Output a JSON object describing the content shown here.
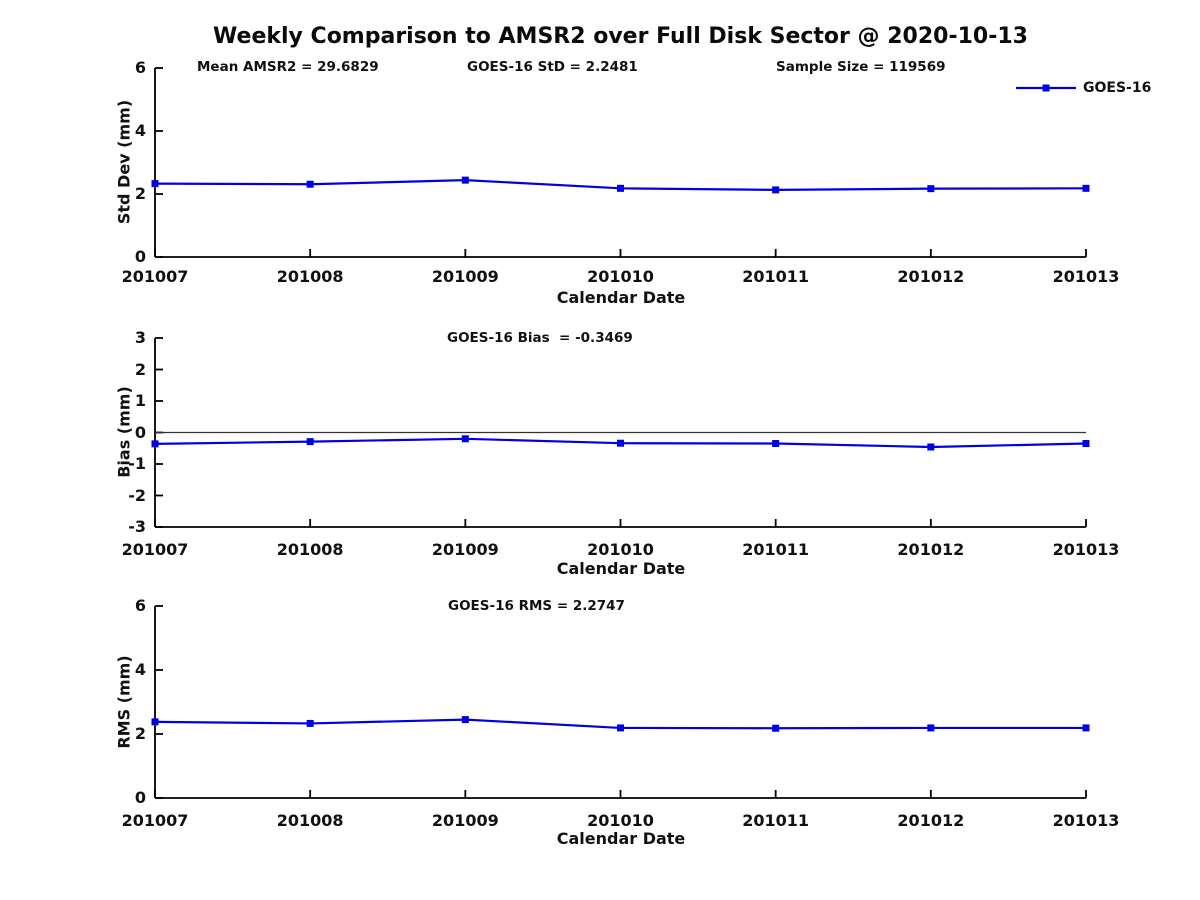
{
  "figure_title": "Weekly Comparison to AMSR2 over Full Disk Sector @ 2020-10-13",
  "colors": {
    "line": "#0000E6",
    "axis": "#000000",
    "zero_line": "#333333",
    "text": "#111111",
    "background": "#ffffff"
  },
  "chart_data": [
    {
      "type": "line",
      "categories": [
        "201007",
        "201008",
        "201009",
        "201010",
        "201011",
        "201012",
        "201013"
      ],
      "series": [
        {
          "name": "GOES-16",
          "values": [
            2.33,
            2.31,
            2.44,
            2.18,
            2.13,
            2.17,
            2.18
          ]
        }
      ],
      "xlabel": "Calendar Date",
      "ylabel": "Std Dev (mm)",
      "ylim": [
        0,
        6
      ],
      "yticks": [
        0,
        2,
        4,
        6
      ],
      "grid": false,
      "marker": "square",
      "annotations": [
        "Mean AMSR2 = 29.6829",
        "GOES-16 StD = 2.2481",
        "Sample Size = 119569"
      ],
      "legend": {
        "label": "GOES-16",
        "position": "top-right-outside"
      }
    },
    {
      "type": "line",
      "categories": [
        "201007",
        "201008",
        "201009",
        "201010",
        "201011",
        "201012",
        "201013"
      ],
      "series": [
        {
          "name": "GOES-16",
          "values": [
            -0.36,
            -0.29,
            -0.2,
            -0.34,
            -0.35,
            -0.46,
            -0.35
          ]
        }
      ],
      "xlabel": "Calendar Date",
      "ylabel": "Bias (mm)",
      "ylim": [
        -3,
        3
      ],
      "yticks": [
        -3,
        -2,
        -1,
        0,
        1,
        2,
        3
      ],
      "grid": false,
      "marker": "square",
      "zero_line": true,
      "annotations": [
        "GOES-16 Bias  = -0.3469"
      ]
    },
    {
      "type": "line",
      "categories": [
        "201007",
        "201008",
        "201009",
        "201010",
        "201011",
        "201012",
        "201013"
      ],
      "series": [
        {
          "name": "GOES-16",
          "values": [
            2.38,
            2.33,
            2.45,
            2.19,
            2.18,
            2.19,
            2.19
          ]
        }
      ],
      "xlabel": "Calendar Date",
      "ylabel": "RMS (mm)",
      "ylim": [
        0,
        6
      ],
      "yticks": [
        0,
        2,
        4,
        6
      ],
      "grid": false,
      "marker": "square",
      "annotations": [
        "GOES-16 RMS = 2.2747"
      ]
    }
  ]
}
